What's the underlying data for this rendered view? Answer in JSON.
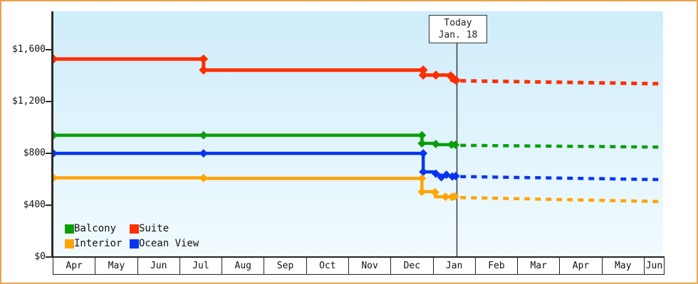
{
  "frame": {
    "border_color": "#E8A44C",
    "background": "#FFFFFF"
  },
  "today": {
    "label_line1": "Today",
    "label_line2": "Jan. 18",
    "x_month_units": 9.57,
    "line_color": "#3a3a3a"
  },
  "legend": {
    "items": [
      {
        "label": "Balcony",
        "color": "#0B9E0B"
      },
      {
        "label": "Suite",
        "color": "#FB2F00"
      },
      {
        "label": "Interior",
        "color": "#FFA405"
      },
      {
        "label": "Ocean View",
        "color": "#0835F0"
      }
    ]
  },
  "chart_data": {
    "type": "line",
    "title": "",
    "xlabel": "",
    "ylabel": "",
    "grid": false,
    "legend_position": "bottom-left-inside",
    "x_axis": {
      "months": [
        "Apr",
        "May",
        "Jun",
        "Jul",
        "Aug",
        "Sep",
        "Oct",
        "Nov",
        "Dec",
        "Jan",
        "Feb",
        "Mar",
        "Apr",
        "May",
        "Jun"
      ],
      "note_units": "x values below are in month-cell units, 0 = start of first Apr"
    },
    "y_axis": {
      "ticks": [
        0,
        400,
        800,
        1200,
        1600
      ],
      "tick_labels": [
        "$0",
        "$400",
        "$800",
        "$1,200",
        "$1,600"
      ],
      "ylim": [
        0,
        1896
      ]
    },
    "plot_background": {
      "top": "#CFEDFA",
      "bottom": "#F2FBFE"
    },
    "series": [
      {
        "name": "Suite",
        "color": "#FB2F00",
        "line_width": 5,
        "solid": [
          [
            0,
            1528
          ],
          [
            3.56,
            1528
          ],
          [
            3.56,
            1443
          ],
          [
            8.77,
            1443
          ],
          [
            8.77,
            1404
          ],
          [
            9.45,
            1404
          ],
          [
            9.45,
            1366
          ],
          [
            9.57,
            1366
          ]
        ],
        "markers": [
          [
            0,
            1528
          ],
          [
            3.56,
            1528
          ],
          [
            3.56,
            1443
          ],
          [
            8.77,
            1443
          ],
          [
            8.77,
            1404
          ],
          [
            9.07,
            1404
          ],
          [
            9.42,
            1398
          ],
          [
            9.49,
            1376
          ],
          [
            9.55,
            1364
          ]
        ],
        "dashed_forecast": [
          [
            9.65,
            1360
          ],
          [
            14.42,
            1337
          ]
        ]
      },
      {
        "name": "Balcony",
        "color": "#0B9E0B",
        "line_width": 4.5,
        "solid": [
          [
            0,
            940
          ],
          [
            3.56,
            940
          ],
          [
            8.74,
            940
          ],
          [
            8.74,
            877
          ],
          [
            9.07,
            877
          ],
          [
            9.07,
            867
          ],
          [
            9.57,
            867
          ]
        ],
        "markers": [
          [
            0,
            940
          ],
          [
            3.56,
            940
          ],
          [
            8.74,
            940
          ],
          [
            8.74,
            877
          ],
          [
            9.07,
            872
          ],
          [
            9.44,
            867
          ],
          [
            9.53,
            866
          ]
        ],
        "dashed_forecast": [
          [
            9.65,
            862
          ],
          [
            14.42,
            848
          ]
        ]
      },
      {
        "name": "Ocean View",
        "color": "#0835F0",
        "line_width": 4.5,
        "solid": [
          [
            0,
            800
          ],
          [
            3.56,
            800
          ],
          [
            8.77,
            800
          ],
          [
            8.77,
            657
          ],
          [
            9.02,
            657
          ],
          [
            9.12,
            638
          ],
          [
            9.22,
            615
          ],
          [
            9.33,
            637
          ],
          [
            9.44,
            620
          ],
          [
            9.57,
            626
          ]
        ],
        "markers": [
          [
            0,
            800
          ],
          [
            3.56,
            800
          ],
          [
            8.77,
            800
          ],
          [
            8.77,
            657
          ],
          [
            9.07,
            643
          ],
          [
            9.2,
            616
          ],
          [
            9.32,
            635
          ],
          [
            9.46,
            621
          ],
          [
            9.54,
            625
          ]
        ],
        "dashed_forecast": [
          [
            9.65,
            621
          ],
          [
            14.42,
            597
          ]
        ]
      },
      {
        "name": "Interior",
        "color": "#FFA405",
        "line_width": 4.5,
        "solid": [
          [
            0,
            611
          ],
          [
            3.56,
            611
          ],
          [
            3.56,
            607
          ],
          [
            8.74,
            607
          ],
          [
            8.74,
            504
          ],
          [
            9.06,
            504
          ],
          [
            9.06,
            465
          ],
          [
            9.45,
            465
          ],
          [
            9.57,
            467
          ]
        ],
        "markers": [
          [
            0,
            611
          ],
          [
            3.56,
            609
          ],
          [
            8.74,
            607
          ],
          [
            8.74,
            504
          ],
          [
            9.05,
            500
          ],
          [
            9.3,
            465
          ],
          [
            9.45,
            463
          ],
          [
            9.52,
            468
          ]
        ],
        "dashed_forecast": [
          [
            9.65,
            459
          ],
          [
            14.42,
            428
          ]
        ]
      }
    ]
  }
}
